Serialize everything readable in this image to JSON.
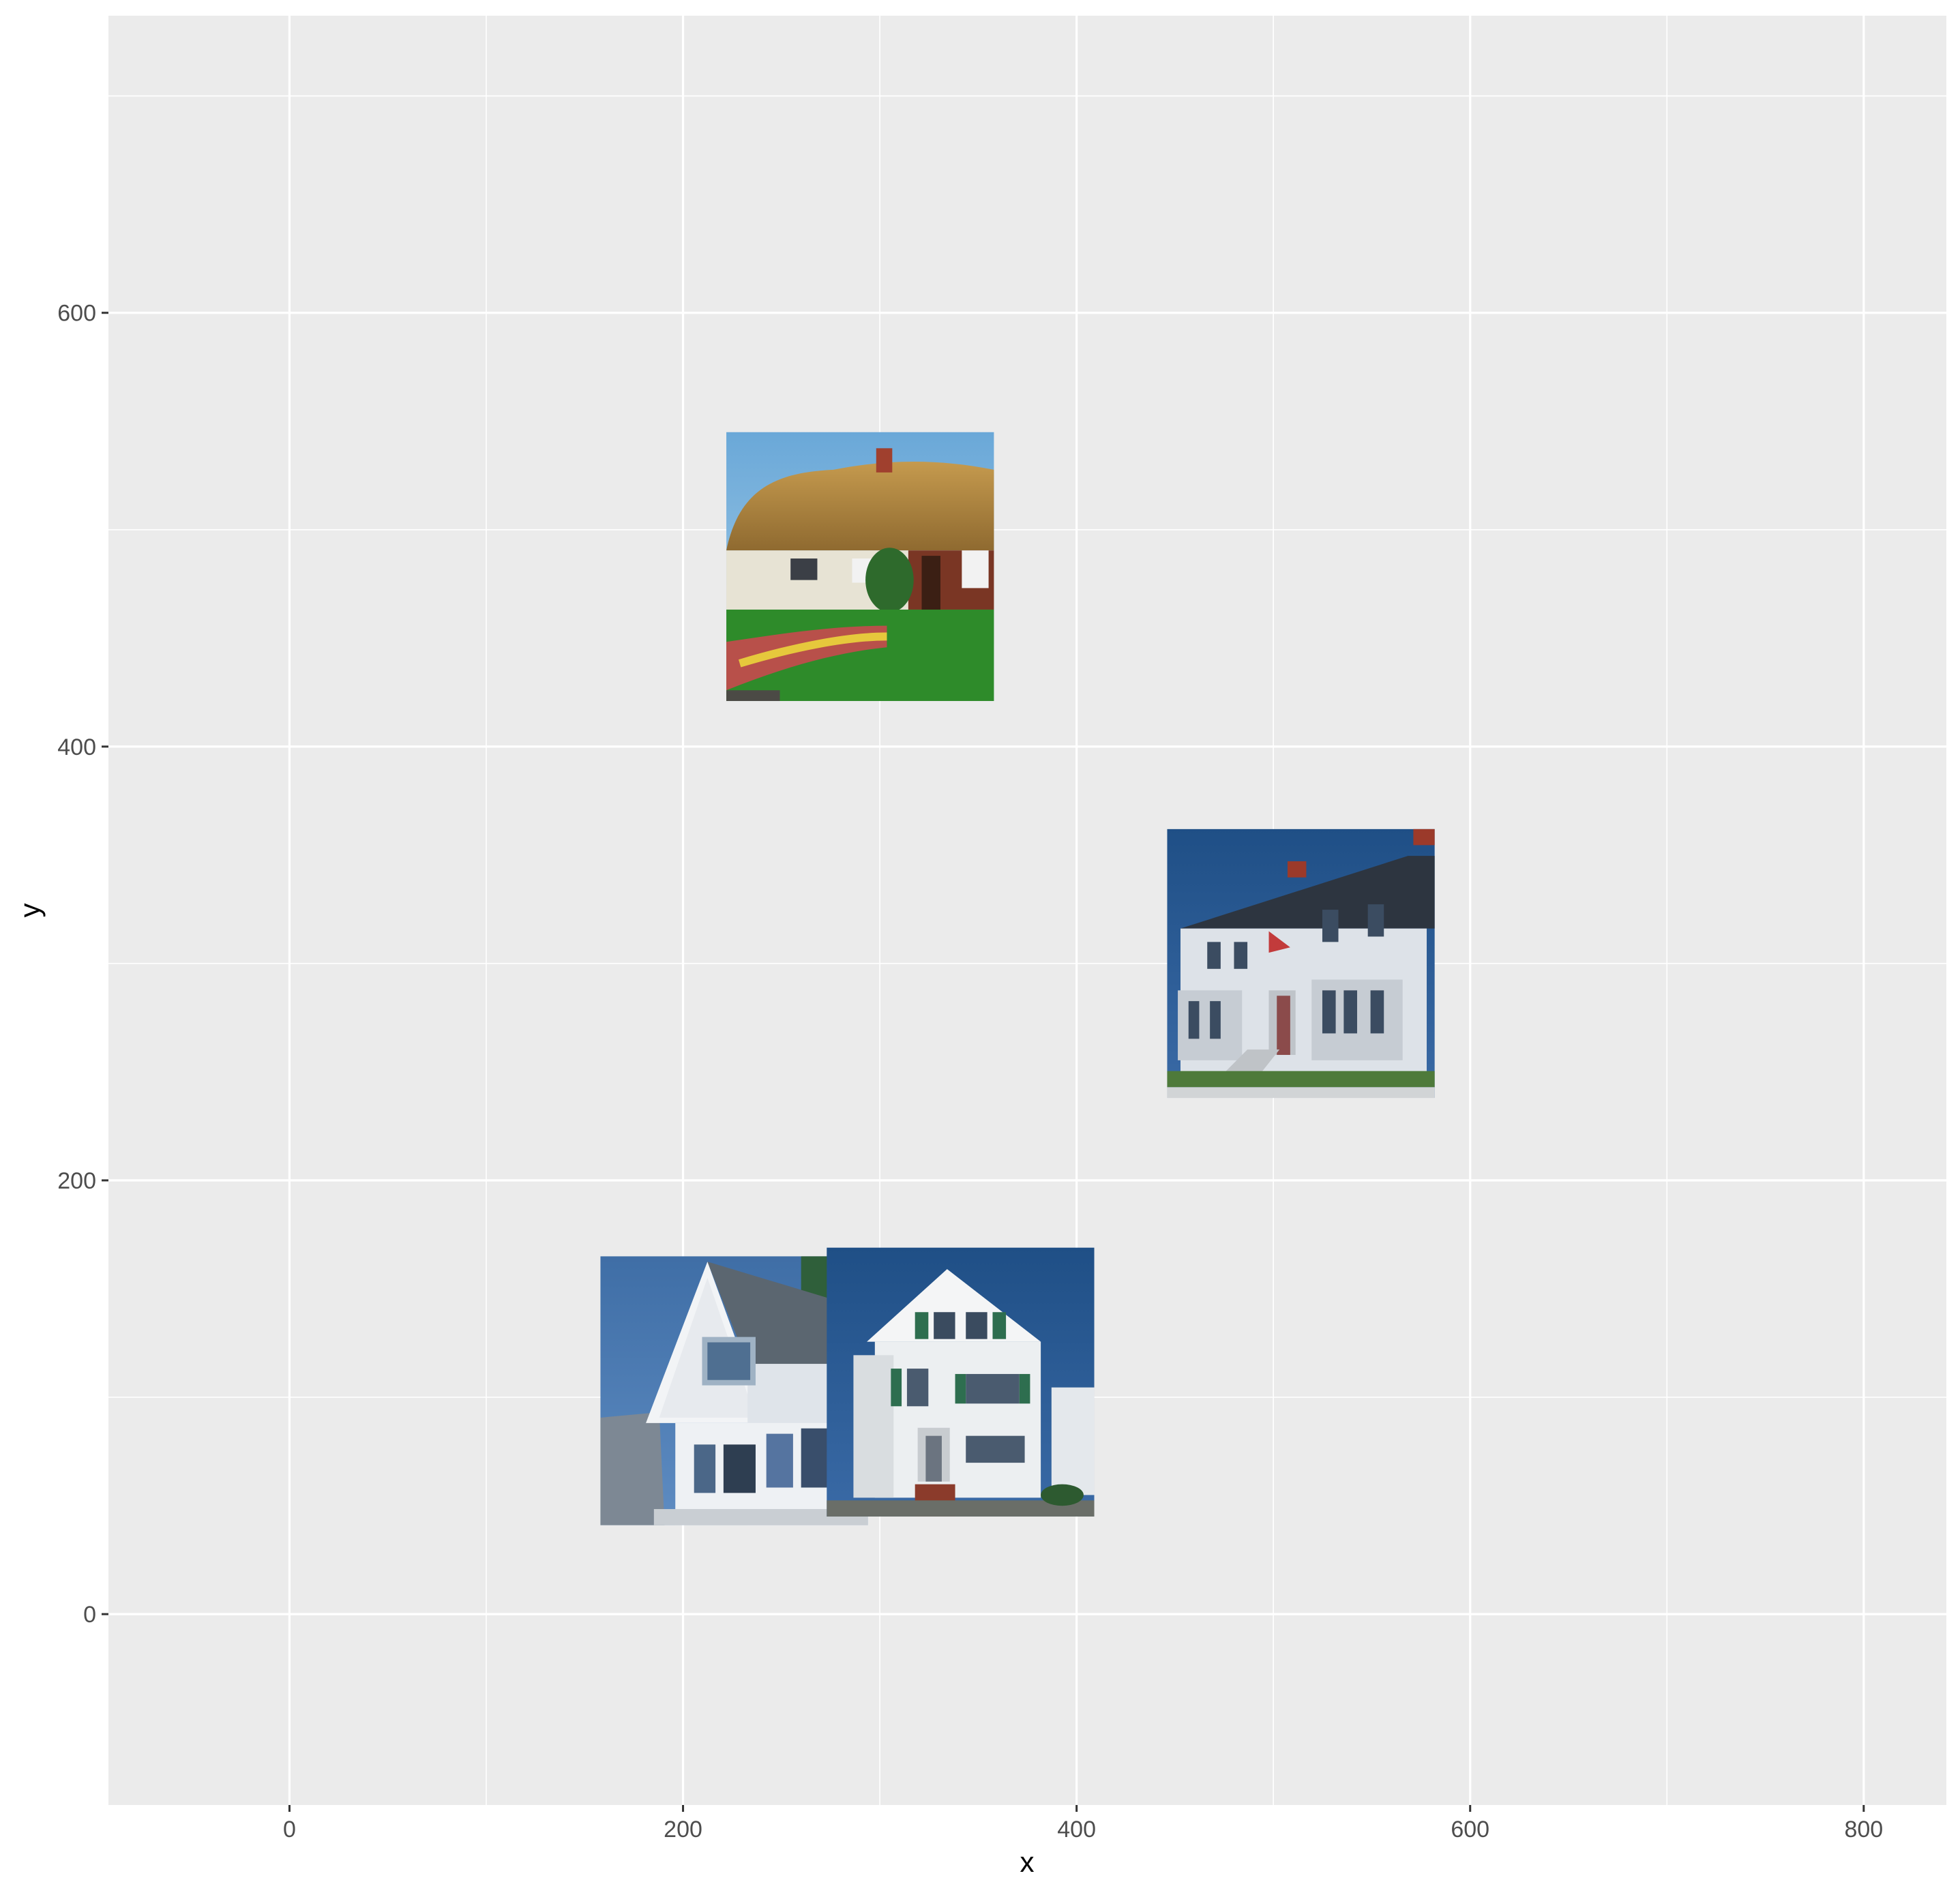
{
  "chart_data": {
    "type": "scatter",
    "title": "",
    "xlabel": "x",
    "ylabel": "y",
    "xlim": [
      -92,
      842
    ],
    "ylim": [
      -88,
      737
    ],
    "x_ticks": [
      0,
      200,
      400,
      600,
      800
    ],
    "y_ticks": [
      0,
      200,
      400,
      600
    ],
    "x_tick_labels": [
      "0",
      "200",
      "400",
      "600",
      "800"
    ],
    "y_tick_labels": [
      "0",
      "200",
      "400",
      "600"
    ],
    "grid": true,
    "legend": "none",
    "points": [
      {
        "x": 226,
        "y": 103,
        "width": 136,
        "height": 124,
        "image": "house-white-gable-bay-windows"
      },
      {
        "x": 341,
        "y": 107,
        "width": 136,
        "height": 124,
        "image": "house-white-green-shutters"
      },
      {
        "x": 290,
        "y": 483,
        "width": 136,
        "height": 124,
        "image": "cottage-thatched-roof-garden"
      },
      {
        "x": 514,
        "y": 300,
        "width": 136,
        "height": 124,
        "image": "house-colonial-bay-windows-flag"
      }
    ]
  }
}
